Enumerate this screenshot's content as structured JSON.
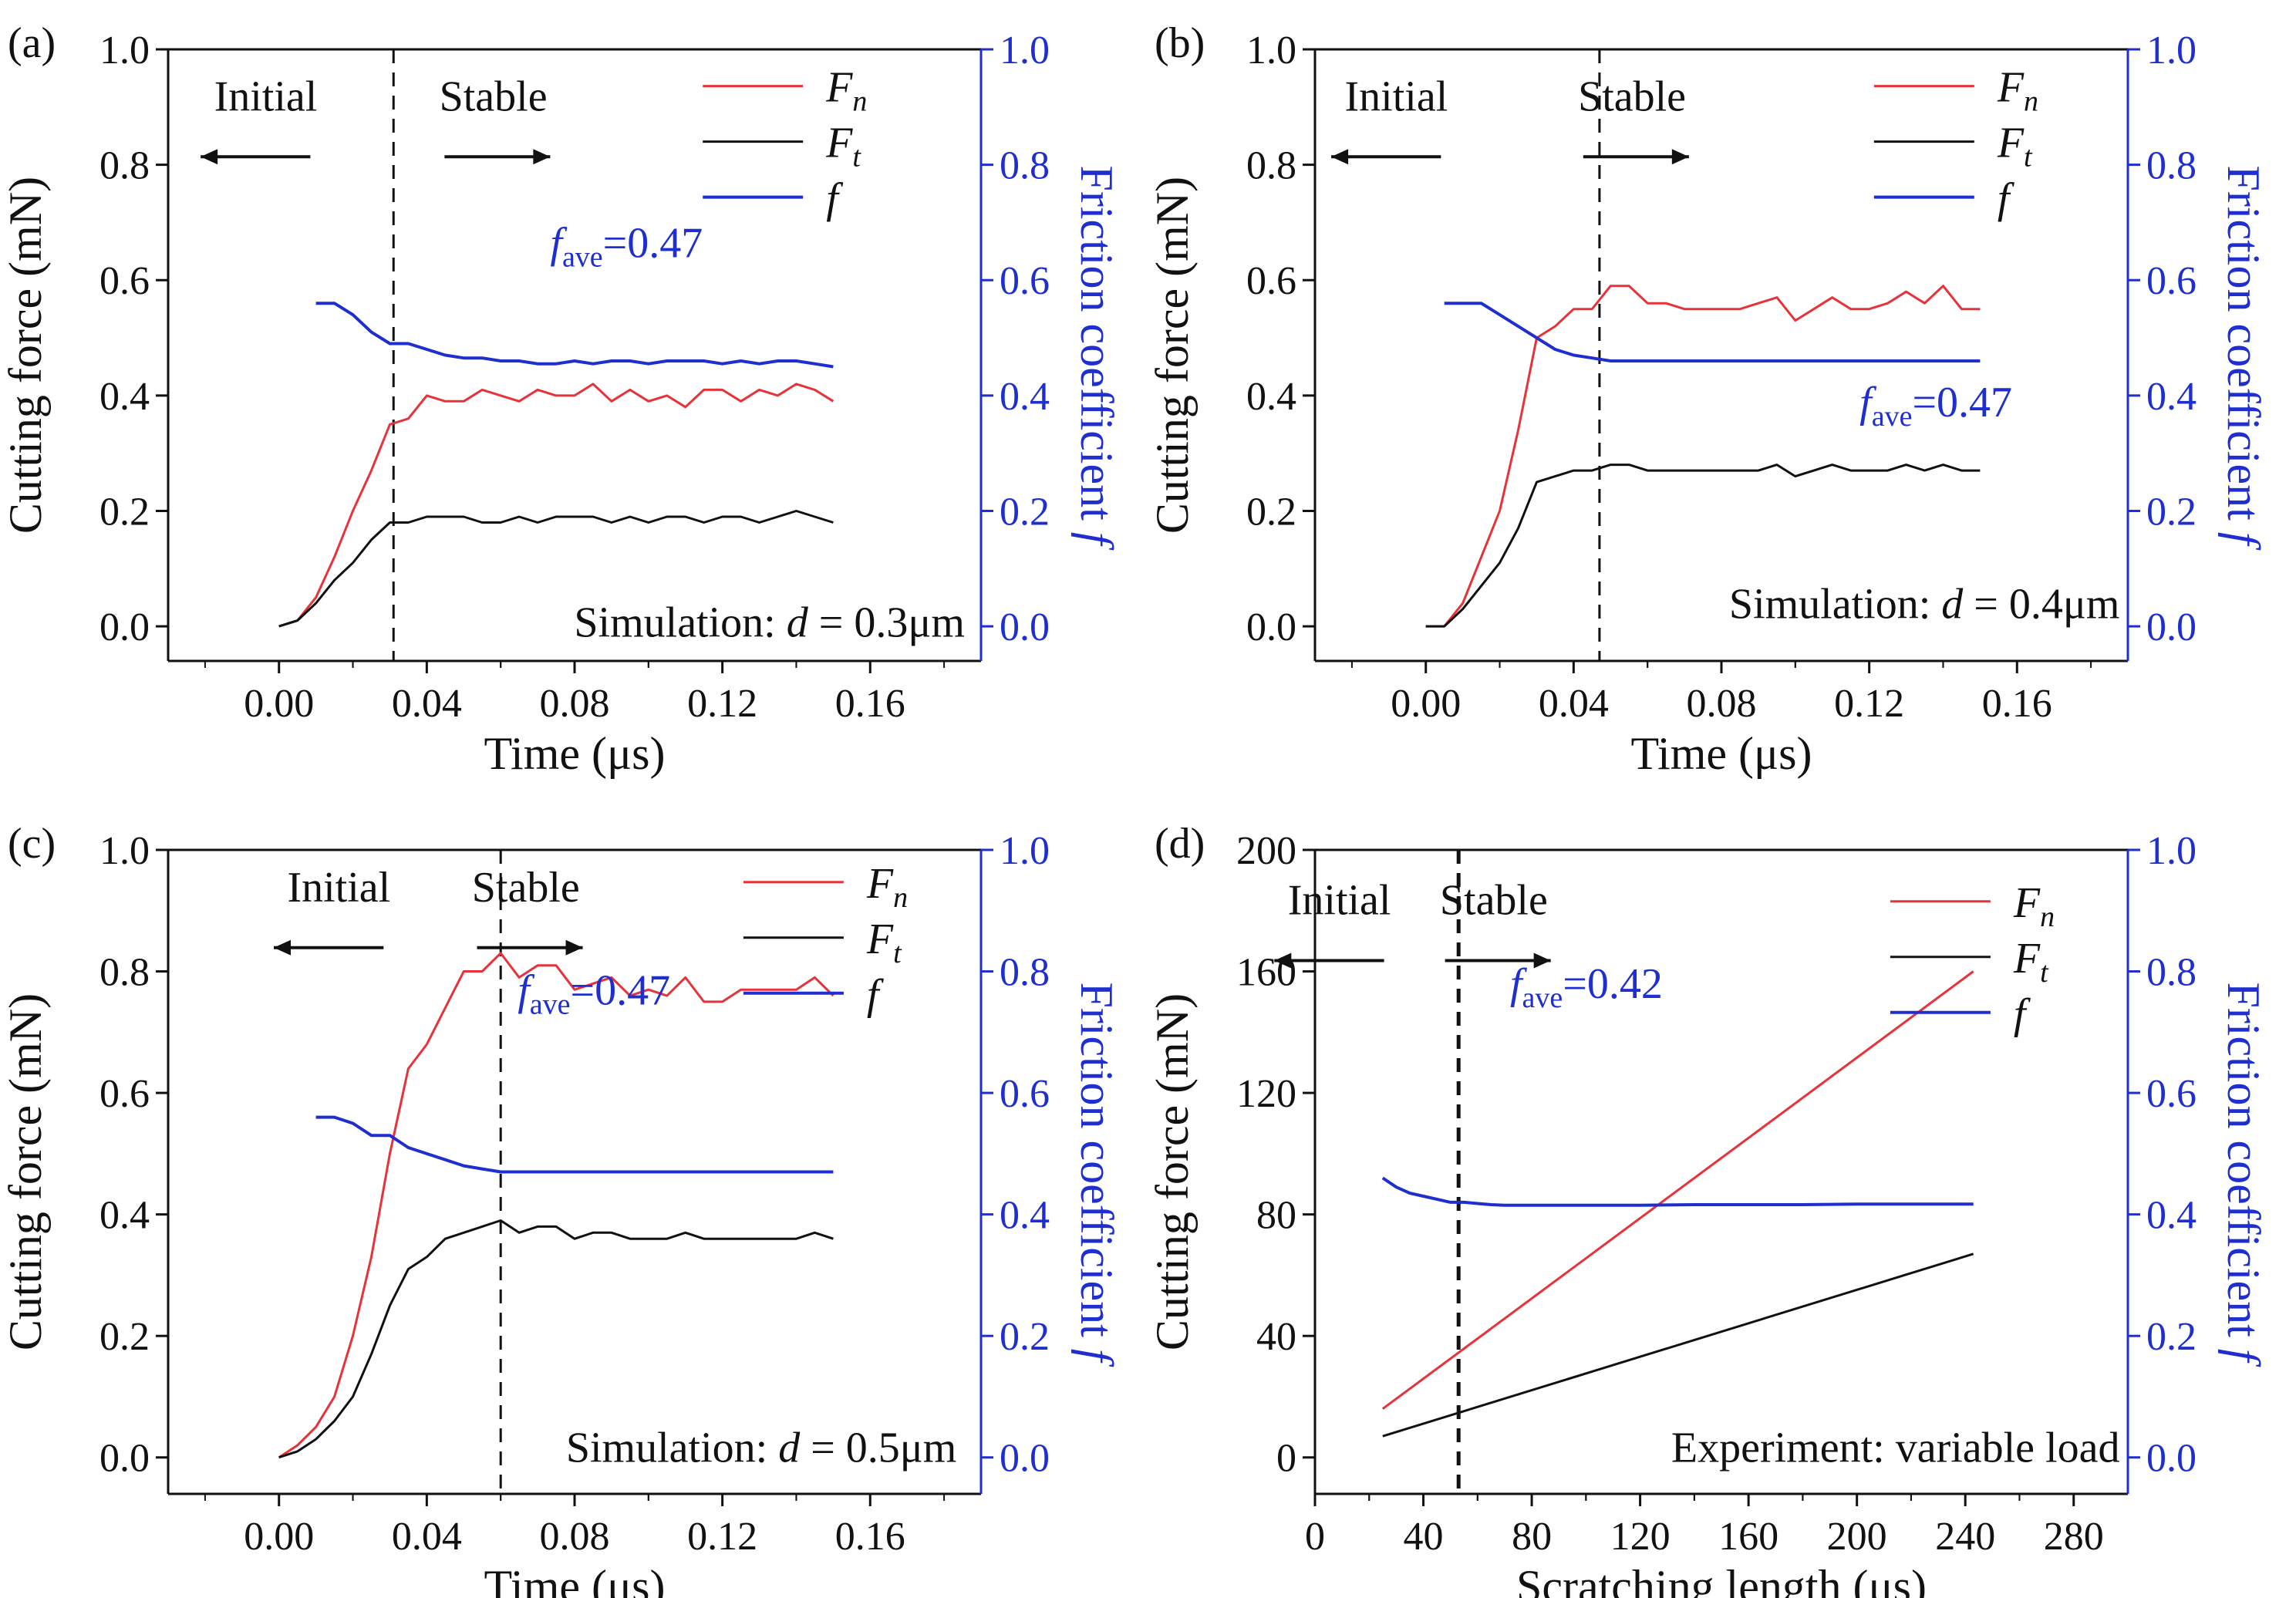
{
  "colors": {
    "fn": "#e8323a",
    "ft": "#111111",
    "f": "#1f2fcf",
    "right_axis": "#1f2fcf",
    "divider": "#111111"
  },
  "chart_data": [
    {
      "type": "line",
      "panel_label": "(a)",
      "xlabel": "Time (μs)",
      "ylabel_left": "Cutting force (mN)",
      "ylabel_right": "Friction coefficient ",
      "ylabel_right_symbol": "f",
      "xlim": [
        -0.03,
        0.19
      ],
      "ylim_left": [
        -0.06,
        1.0
      ],
      "ylim_right": [
        -0.06,
        1.0
      ],
      "x_ticks": [
        0.0,
        0.04,
        0.08,
        0.12,
        0.16
      ],
      "x_tick_labels": [
        "0.00",
        "0.04",
        "0.08",
        "0.12",
        "0.16"
      ],
      "y_left_ticks": [
        0.0,
        0.2,
        0.4,
        0.6,
        0.8,
        1.0
      ],
      "y_left_tick_labels": [
        "0.0",
        "0.2",
        "0.4",
        "0.6",
        "0.8",
        "1.0"
      ],
      "y_right_ticks": [
        0.0,
        0.2,
        0.4,
        0.6,
        0.8,
        1.0
      ],
      "y_right_tick_labels": [
        "0.0",
        "0.2",
        "0.4",
        "0.6",
        "0.8",
        "1.0"
      ],
      "divider_x": 0.031,
      "phase_left": "Initial",
      "phase_right": "Stable",
      "fave_prefix": "f",
      "fave_sub": "ave",
      "fave_value": "=0.47",
      "annotation_prefix": "Simulation: ",
      "annotation_var": "d",
      "annotation_suffix": " = 0.3μm",
      "legend": [
        {
          "symbol": "F",
          "sub": "n",
          "series": "Fn"
        },
        {
          "symbol": "F",
          "sub": "t",
          "series": "Ft"
        },
        {
          "symbol": "f",
          "sub": "",
          "series": "f"
        }
      ],
      "series": [
        {
          "name": "Fn",
          "axis": "left",
          "x": [
            0,
            0.005,
            0.01,
            0.015,
            0.02,
            0.025,
            0.03,
            0.035,
            0.04,
            0.045,
            0.05,
            0.055,
            0.06,
            0.065,
            0.07,
            0.075,
            0.08,
            0.085,
            0.09,
            0.095,
            0.1,
            0.105,
            0.11,
            0.115,
            0.12,
            0.125,
            0.13,
            0.135,
            0.14,
            0.145,
            0.15
          ],
          "values": [
            0.0,
            0.01,
            0.05,
            0.12,
            0.2,
            0.27,
            0.35,
            0.36,
            0.4,
            0.39,
            0.39,
            0.41,
            0.4,
            0.39,
            0.41,
            0.4,
            0.4,
            0.42,
            0.39,
            0.41,
            0.39,
            0.4,
            0.38,
            0.41,
            0.41,
            0.39,
            0.41,
            0.4,
            0.42,
            0.41,
            0.39
          ]
        },
        {
          "name": "Ft",
          "axis": "left",
          "x": [
            0,
            0.005,
            0.01,
            0.015,
            0.02,
            0.025,
            0.03,
            0.035,
            0.04,
            0.045,
            0.05,
            0.055,
            0.06,
            0.065,
            0.07,
            0.075,
            0.08,
            0.085,
            0.09,
            0.095,
            0.1,
            0.105,
            0.11,
            0.115,
            0.12,
            0.125,
            0.13,
            0.135,
            0.14,
            0.145,
            0.15
          ],
          "values": [
            0.0,
            0.01,
            0.04,
            0.08,
            0.11,
            0.15,
            0.18,
            0.18,
            0.19,
            0.19,
            0.19,
            0.18,
            0.18,
            0.19,
            0.18,
            0.19,
            0.19,
            0.19,
            0.18,
            0.19,
            0.18,
            0.19,
            0.19,
            0.18,
            0.19,
            0.19,
            0.18,
            0.19,
            0.2,
            0.19,
            0.18
          ]
        },
        {
          "name": "f",
          "axis": "right",
          "x": [
            0.01,
            0.015,
            0.02,
            0.025,
            0.03,
            0.035,
            0.04,
            0.045,
            0.05,
            0.055,
            0.06,
            0.065,
            0.07,
            0.075,
            0.08,
            0.085,
            0.09,
            0.095,
            0.1,
            0.105,
            0.11,
            0.115,
            0.12,
            0.125,
            0.13,
            0.135,
            0.14,
            0.145,
            0.15
          ],
          "values": [
            0.56,
            0.56,
            0.54,
            0.51,
            0.49,
            0.49,
            0.48,
            0.47,
            0.465,
            0.465,
            0.46,
            0.46,
            0.455,
            0.455,
            0.46,
            0.455,
            0.46,
            0.46,
            0.455,
            0.46,
            0.46,
            0.46,
            0.455,
            0.46,
            0.455,
            0.46,
            0.46,
            0.455,
            0.45
          ]
        }
      ]
    },
    {
      "type": "line",
      "panel_label": "(b)",
      "xlabel": "Time (μs)",
      "ylabel_left": "Cutting force (mN)",
      "ylabel_right": "Friction coefficient ",
      "ylabel_right_symbol": "f",
      "xlim": [
        -0.03,
        0.19
      ],
      "ylim_left": [
        -0.06,
        1.0
      ],
      "ylim_right": [
        -0.06,
        1.0
      ],
      "x_ticks": [
        0.0,
        0.04,
        0.08,
        0.12,
        0.16
      ],
      "x_tick_labels": [
        "0.00",
        "0.04",
        "0.08",
        "0.12",
        "0.16"
      ],
      "y_left_ticks": [
        0.0,
        0.2,
        0.4,
        0.6,
        0.8,
        1.0
      ],
      "y_left_tick_labels": [
        "0.0",
        "0.2",
        "0.4",
        "0.6",
        "0.8",
        "1.0"
      ],
      "y_right_ticks": [
        0.0,
        0.2,
        0.4,
        0.6,
        0.8,
        1.0
      ],
      "y_right_tick_labels": [
        "0.0",
        "0.2",
        "0.4",
        "0.6",
        "0.8",
        "1.0"
      ],
      "divider_x": 0.047,
      "phase_left": "Initial",
      "phase_right": "Stable",
      "fave_prefix": "f",
      "fave_sub": "ave",
      "fave_value": "=0.47",
      "annotation_prefix": "Simulation: ",
      "annotation_var": "d",
      "annotation_suffix": " = 0.4μm",
      "legend": [
        {
          "symbol": "F",
          "sub": "n",
          "series": "Fn"
        },
        {
          "symbol": "F",
          "sub": "t",
          "series": "Ft"
        },
        {
          "symbol": "f",
          "sub": "",
          "series": "f"
        }
      ],
      "series": [
        {
          "name": "Fn",
          "axis": "left",
          "x": [
            0,
            0.005,
            0.01,
            0.015,
            0.02,
            0.025,
            0.03,
            0.035,
            0.04,
            0.045,
            0.05,
            0.055,
            0.06,
            0.065,
            0.07,
            0.075,
            0.08,
            0.085,
            0.09,
            0.095,
            0.1,
            0.105,
            0.11,
            0.115,
            0.12,
            0.125,
            0.13,
            0.135,
            0.14,
            0.145,
            0.15
          ],
          "values": [
            0.0,
            0.0,
            0.04,
            0.12,
            0.2,
            0.34,
            0.5,
            0.52,
            0.55,
            0.55,
            0.59,
            0.59,
            0.56,
            0.56,
            0.55,
            0.55,
            0.55,
            0.55,
            0.56,
            0.57,
            0.53,
            0.55,
            0.57,
            0.55,
            0.55,
            0.56,
            0.58,
            0.56,
            0.59,
            0.55,
            0.55
          ]
        },
        {
          "name": "Ft",
          "axis": "left",
          "x": [
            0,
            0.005,
            0.01,
            0.015,
            0.02,
            0.025,
            0.03,
            0.035,
            0.04,
            0.045,
            0.05,
            0.055,
            0.06,
            0.065,
            0.07,
            0.075,
            0.08,
            0.085,
            0.09,
            0.095,
            0.1,
            0.105,
            0.11,
            0.115,
            0.12,
            0.125,
            0.13,
            0.135,
            0.14,
            0.145,
            0.15
          ],
          "values": [
            0.0,
            0.0,
            0.03,
            0.07,
            0.11,
            0.17,
            0.25,
            0.26,
            0.27,
            0.27,
            0.28,
            0.28,
            0.27,
            0.27,
            0.27,
            0.27,
            0.27,
            0.27,
            0.27,
            0.28,
            0.26,
            0.27,
            0.28,
            0.27,
            0.27,
            0.27,
            0.28,
            0.27,
            0.28,
            0.27,
            0.27
          ]
        },
        {
          "name": "f",
          "axis": "right",
          "x": [
            0.005,
            0.01,
            0.015,
            0.02,
            0.025,
            0.03,
            0.035,
            0.04,
            0.045,
            0.05,
            0.055,
            0.06,
            0.065,
            0.07,
            0.075,
            0.08,
            0.085,
            0.09,
            0.095,
            0.1,
            0.105,
            0.11,
            0.115,
            0.12,
            0.125,
            0.13,
            0.135,
            0.14,
            0.145,
            0.15
          ],
          "values": [
            0.56,
            0.56,
            0.56,
            0.54,
            0.52,
            0.5,
            0.48,
            0.47,
            0.465,
            0.46,
            0.46,
            0.46,
            0.46,
            0.46,
            0.46,
            0.46,
            0.46,
            0.46,
            0.46,
            0.46,
            0.46,
            0.46,
            0.46,
            0.46,
            0.46,
            0.46,
            0.46,
            0.46,
            0.46,
            0.46
          ]
        }
      ]
    },
    {
      "type": "line",
      "panel_label": "(c)",
      "xlabel": "Time (μs)",
      "ylabel_left": "Cutting force (mN)",
      "ylabel_right": "Friction coefficient ",
      "ylabel_right_symbol": "f",
      "xlim": [
        -0.03,
        0.19
      ],
      "ylim_left": [
        -0.06,
        1.0
      ],
      "ylim_right": [
        -0.06,
        1.0
      ],
      "x_ticks": [
        0.0,
        0.04,
        0.08,
        0.12,
        0.16
      ],
      "x_tick_labels": [
        "0.00",
        "0.04",
        "0.08",
        "0.12",
        "0.16"
      ],
      "y_left_ticks": [
        0.0,
        0.2,
        0.4,
        0.6,
        0.8,
        1.0
      ],
      "y_left_tick_labels": [
        "0.0",
        "0.2",
        "0.4",
        "0.6",
        "0.8",
        "1.0"
      ],
      "y_right_ticks": [
        0.0,
        0.2,
        0.4,
        0.6,
        0.8,
        1.0
      ],
      "y_right_tick_labels": [
        "0.0",
        "0.2",
        "0.4",
        "0.6",
        "0.8",
        "1.0"
      ],
      "divider_x": 0.06,
      "phase_left": "Initial",
      "phase_right": "Stable",
      "fave_prefix": "f",
      "fave_sub": "ave",
      "fave_value": "=0.47",
      "annotation_prefix": "Simulation: ",
      "annotation_var": "d",
      "annotation_suffix": " = 0.5μm",
      "legend": [
        {
          "symbol": "F",
          "sub": "n",
          "series": "Fn"
        },
        {
          "symbol": "F",
          "sub": "t",
          "series": "Ft"
        },
        {
          "symbol": "f",
          "sub": "",
          "series": "f"
        }
      ],
      "series": [
        {
          "name": "Fn",
          "axis": "left",
          "x": [
            0,
            0.005,
            0.01,
            0.015,
            0.02,
            0.025,
            0.03,
            0.035,
            0.04,
            0.045,
            0.05,
            0.055,
            0.06,
            0.065,
            0.07,
            0.075,
            0.08,
            0.085,
            0.09,
            0.095,
            0.1,
            0.105,
            0.11,
            0.115,
            0.12,
            0.125,
            0.13,
            0.135,
            0.14,
            0.145,
            0.15
          ],
          "values": [
            0.0,
            0.02,
            0.05,
            0.1,
            0.2,
            0.33,
            0.5,
            0.64,
            0.68,
            0.74,
            0.8,
            0.8,
            0.83,
            0.79,
            0.81,
            0.81,
            0.77,
            0.78,
            0.79,
            0.76,
            0.77,
            0.76,
            0.79,
            0.75,
            0.75,
            0.77,
            0.77,
            0.77,
            0.77,
            0.79,
            0.76
          ]
        },
        {
          "name": "Ft",
          "axis": "left",
          "x": [
            0,
            0.005,
            0.01,
            0.015,
            0.02,
            0.025,
            0.03,
            0.035,
            0.04,
            0.045,
            0.05,
            0.055,
            0.06,
            0.065,
            0.07,
            0.075,
            0.08,
            0.085,
            0.09,
            0.095,
            0.1,
            0.105,
            0.11,
            0.115,
            0.12,
            0.125,
            0.13,
            0.135,
            0.14,
            0.145,
            0.15
          ],
          "values": [
            0.0,
            0.01,
            0.03,
            0.06,
            0.1,
            0.17,
            0.25,
            0.31,
            0.33,
            0.36,
            0.37,
            0.38,
            0.39,
            0.37,
            0.38,
            0.38,
            0.36,
            0.37,
            0.37,
            0.36,
            0.36,
            0.36,
            0.37,
            0.36,
            0.36,
            0.36,
            0.36,
            0.36,
            0.36,
            0.37,
            0.36
          ]
        },
        {
          "name": "f",
          "axis": "right",
          "x": [
            0.01,
            0.015,
            0.02,
            0.025,
            0.03,
            0.035,
            0.04,
            0.045,
            0.05,
            0.055,
            0.06,
            0.065,
            0.07,
            0.075,
            0.08,
            0.085,
            0.09,
            0.095,
            0.1,
            0.105,
            0.11,
            0.115,
            0.12,
            0.125,
            0.13,
            0.135,
            0.14,
            0.145,
            0.15
          ],
          "values": [
            0.56,
            0.56,
            0.55,
            0.53,
            0.53,
            0.51,
            0.5,
            0.49,
            0.48,
            0.475,
            0.47,
            0.47,
            0.47,
            0.47,
            0.47,
            0.47,
            0.47,
            0.47,
            0.47,
            0.47,
            0.47,
            0.47,
            0.47,
            0.47,
            0.47,
            0.47,
            0.47,
            0.47,
            0.47
          ]
        }
      ]
    },
    {
      "type": "line",
      "panel_label": "(d)",
      "xlabel": "Scratching length (μs)",
      "ylabel_left": "Cutting force (mN)",
      "ylabel_right": "Friction coefficient ",
      "ylabel_right_symbol": "f",
      "xlim": [
        0,
        300
      ],
      "ylim_left": [
        -12,
        200
      ],
      "ylim_right": [
        -0.06,
        1.0
      ],
      "x_ticks": [
        0,
        40,
        80,
        120,
        160,
        200,
        240,
        280
      ],
      "x_tick_labels": [
        "0",
        "40",
        "80",
        "120",
        "160",
        "200",
        "240",
        "280"
      ],
      "y_left_ticks": [
        0,
        40,
        80,
        120,
        160,
        200
      ],
      "y_left_tick_labels": [
        "0",
        "40",
        "80",
        "120",
        "160",
        "200"
      ],
      "y_right_ticks": [
        0.0,
        0.2,
        0.4,
        0.6,
        0.8,
        1.0
      ],
      "y_right_tick_labels": [
        "0.0",
        "0.2",
        "0.4",
        "0.6",
        "0.8",
        "1.0"
      ],
      "divider_x": 53,
      "phase_left": "Initial",
      "phase_right": "Stable",
      "fave_prefix": "f",
      "fave_sub": "ave",
      "fave_value": "=0.42",
      "annotation_prefix": "Experiment: variable load",
      "annotation_var": "",
      "annotation_suffix": "",
      "legend": [
        {
          "symbol": "F",
          "sub": "n",
          "series": "Fn"
        },
        {
          "symbol": "F",
          "sub": "t",
          "series": "Ft"
        },
        {
          "symbol": "f",
          "sub": "",
          "series": "f"
        }
      ],
      "series": [
        {
          "name": "Fn",
          "axis": "left",
          "x": [
            25,
            243
          ],
          "values": [
            16,
            160
          ]
        },
        {
          "name": "Ft",
          "axis": "left",
          "x": [
            25,
            243
          ],
          "values": [
            7,
            67
          ]
        },
        {
          "name": "f",
          "axis": "right",
          "x": [
            25,
            30,
            35,
            40,
            45,
            50,
            55,
            60,
            65,
            70,
            80,
            90,
            100,
            120,
            140,
            160,
            180,
            200,
            220,
            243
          ],
          "values": [
            0.46,
            0.445,
            0.435,
            0.43,
            0.425,
            0.42,
            0.42,
            0.418,
            0.416,
            0.415,
            0.415,
            0.415,
            0.415,
            0.415,
            0.416,
            0.416,
            0.416,
            0.417,
            0.417,
            0.417
          ]
        }
      ]
    }
  ]
}
